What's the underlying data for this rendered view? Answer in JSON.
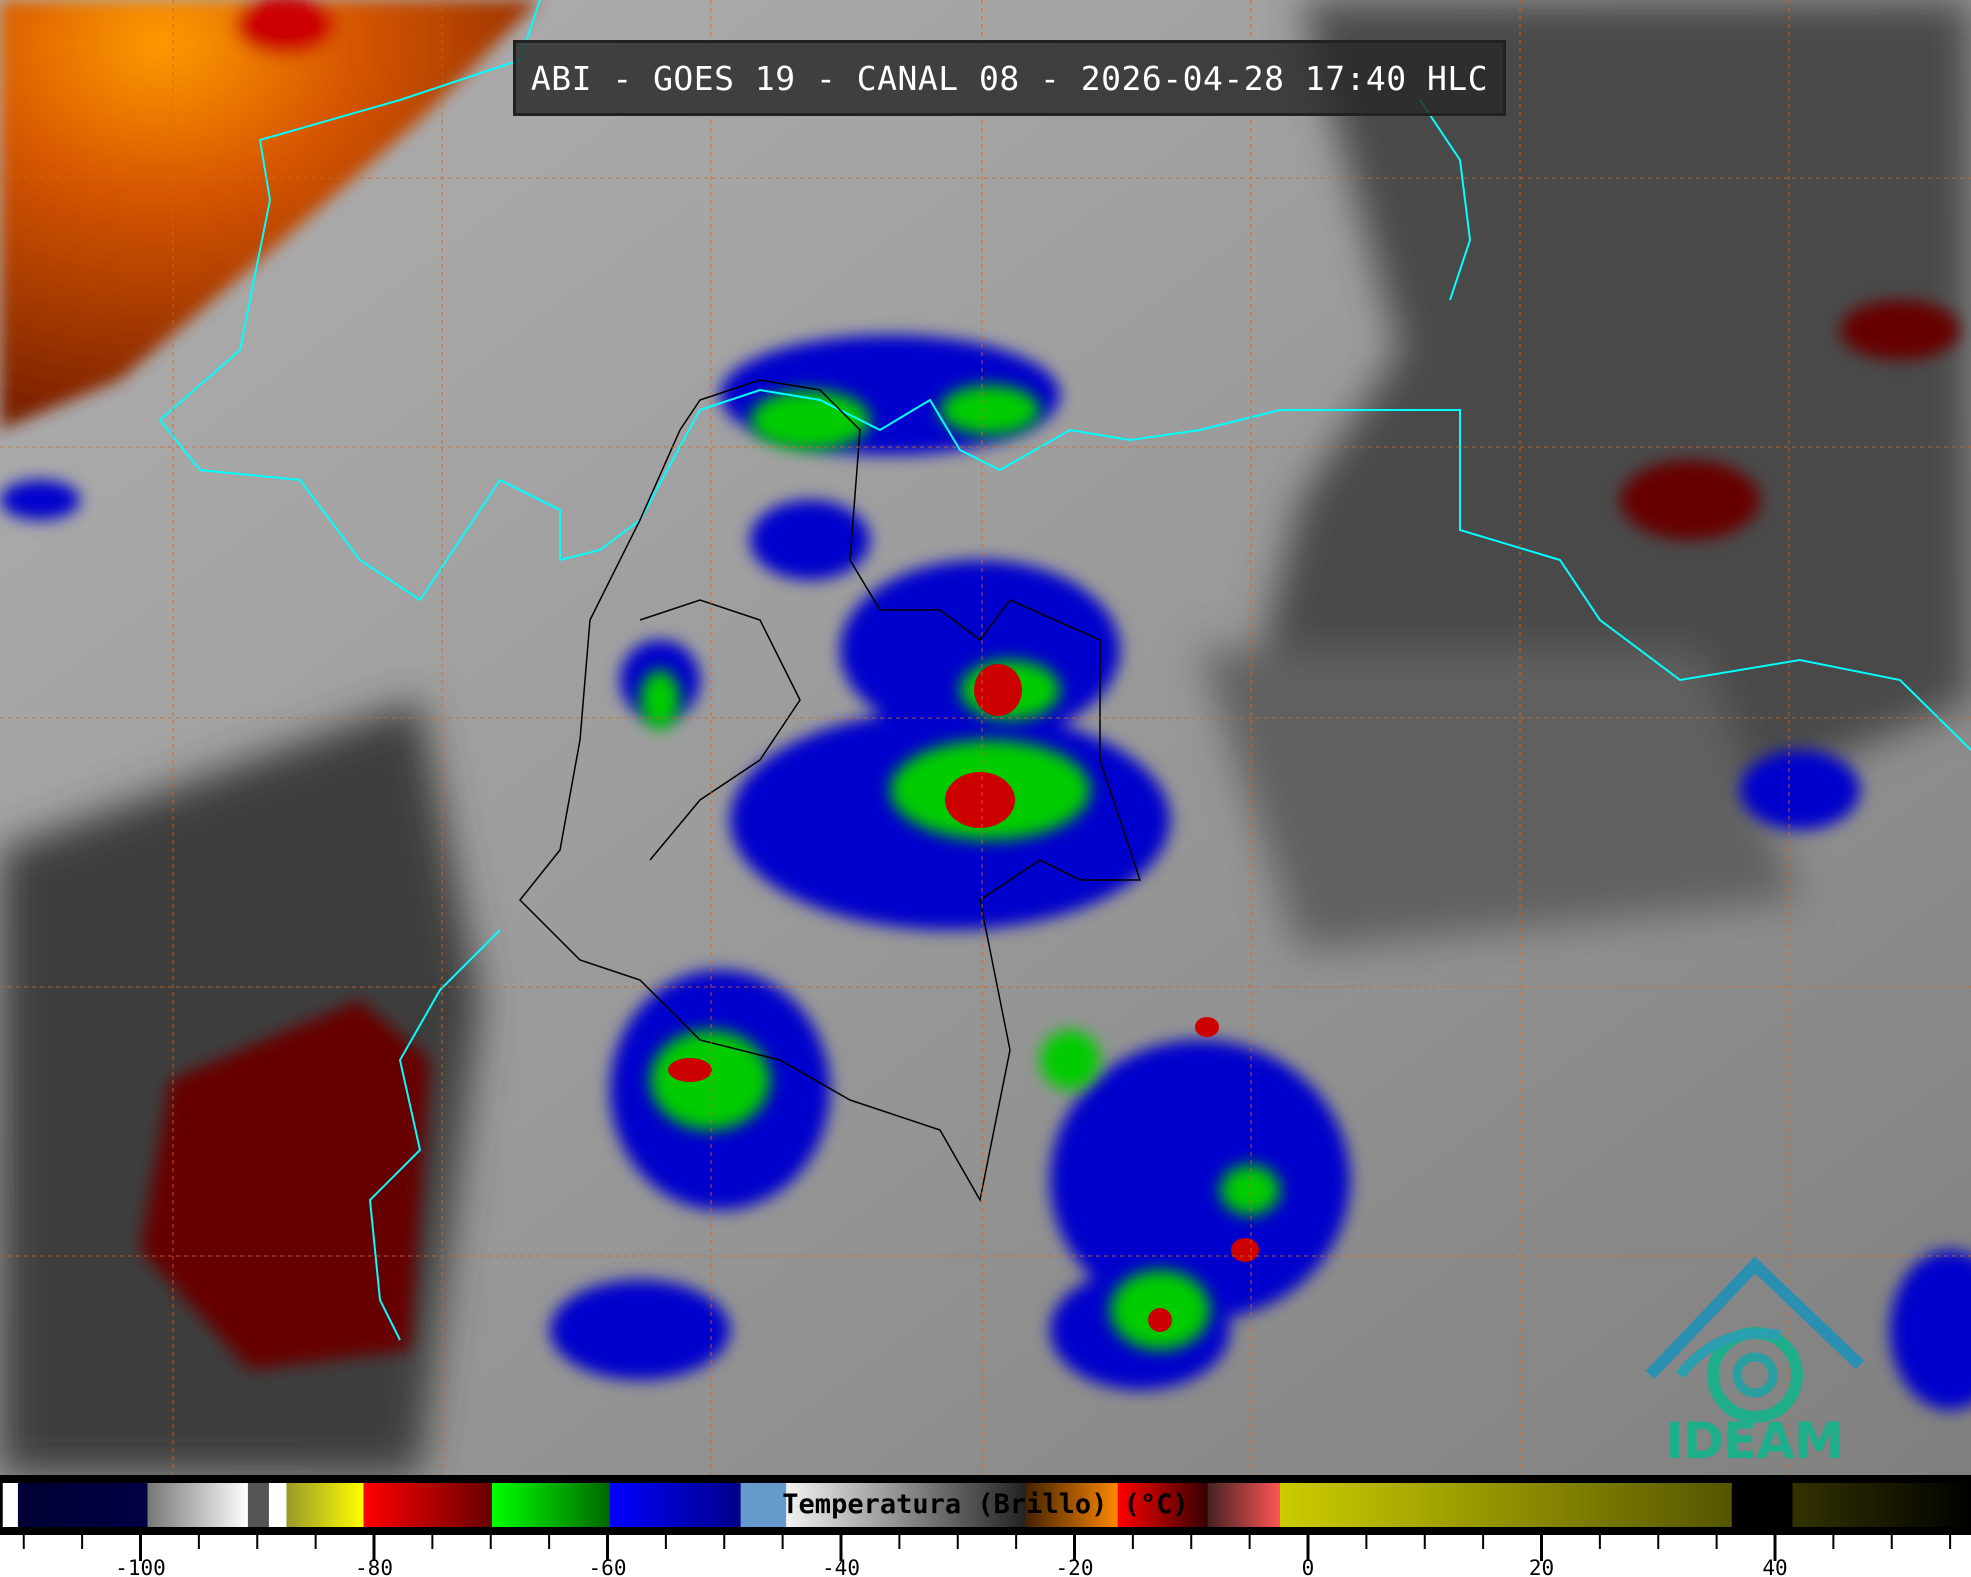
{
  "title": "ABI - GOES 19 - CANAL 08 - 2026-04-28 17:40 HLC",
  "colorbar": {
    "label": "Temperatura (Brillo) (°C)",
    "range": [
      -111.8,
      56.8
    ],
    "major_ticks": [
      -100,
      -80,
      -60,
      -40,
      -20,
      0,
      20,
      40
    ],
    "minor_tick_step": 5,
    "segments": [
      {
        "from": -111.8,
        "to": -110.5,
        "colors": [
          "#ffffff",
          "#ffffff"
        ]
      },
      {
        "from": -110.5,
        "to": -99.4,
        "colors": [
          "#000033",
          "#000044"
        ]
      },
      {
        "from": -99.4,
        "to": -90.8,
        "colors": [
          "#777777",
          "#ffffff"
        ]
      },
      {
        "from": -90.8,
        "to": -89.0,
        "colors": [
          "#555555",
          "#555555"
        ]
      },
      {
        "from": -89.0,
        "to": -87.5,
        "colors": [
          "#ffffff",
          "#ffffff"
        ]
      },
      {
        "from": -87.5,
        "to": -80.9,
        "colors": [
          "#99992a",
          "#ffff00"
        ]
      },
      {
        "from": -80.9,
        "to": -69.9,
        "colors": [
          "#ff0000",
          "#660000"
        ]
      },
      {
        "from": -69.9,
        "to": -59.8,
        "colors": [
          "#00ff00",
          "#006600"
        ]
      },
      {
        "from": -59.8,
        "to": -48.6,
        "colors": [
          "#0000ff",
          "#000088"
        ]
      },
      {
        "from": -48.6,
        "to": -44.7,
        "colors": [
          "#6699cc",
          "#6699cc"
        ]
      },
      {
        "from": -44.7,
        "to": -24.2,
        "colors": [
          "#f2f2f2",
          "#222222"
        ]
      },
      {
        "from": -24.2,
        "to": -16.3,
        "colors": [
          "#442200",
          "#ff8800"
        ]
      },
      {
        "from": -16.3,
        "to": -8.6,
        "colors": [
          "#ff0000",
          "#330000"
        ]
      },
      {
        "from": -8.6,
        "to": -2.4,
        "colors": [
          "#442222",
          "#ff5555"
        ]
      },
      {
        "from": -2.4,
        "to": 36.3,
        "colors": [
          "#cccc00",
          "#555500"
        ]
      },
      {
        "from": 36.3,
        "to": 41.5,
        "colors": [
          "#000000",
          "#000000"
        ]
      },
      {
        "from": 41.5,
        "to": 56.8,
        "colors": [
          "#333300",
          "#000000"
        ]
      }
    ]
  },
  "map": {
    "coastline_color": "#00ffff",
    "border_color": "#000000",
    "grid_color": "#d2691e"
  },
  "logo": {
    "text": "IDEAM",
    "color": "#1fae8a"
  }
}
